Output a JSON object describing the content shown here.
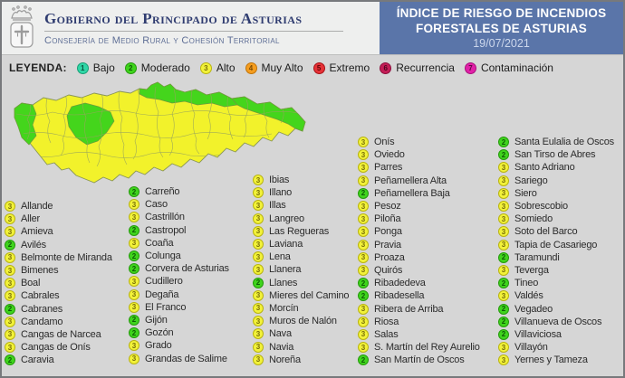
{
  "header": {
    "title": "Gobierno del Principado de Asturias",
    "subtitle": "Consejería de Medio Rural y Cohesión Territorial",
    "box_title_line1": "ÍNDICE DE RIESGO DE INCENDIOS",
    "box_title_line2": "FORESTALES DE ASTURIAS",
    "date": "19/07/2021",
    "accent_blue": "#5a75a9"
  },
  "legend": {
    "label": "LEYENDA:",
    "items": [
      {
        "level": "1",
        "label": "Bajo",
        "color": "#2fd6a6"
      },
      {
        "level": "2",
        "label": "Moderado",
        "color": "#3fd41c"
      },
      {
        "level": "3",
        "label": "Alto",
        "color": "#f2f239"
      },
      {
        "level": "4",
        "label": "Muy Alto",
        "color": "#f59d1f"
      },
      {
        "level": "5",
        "label": "Extremo",
        "color": "#e63237"
      },
      {
        "level": "6",
        "label": "Recurrencia",
        "color": "#c41e57"
      },
      {
        "level": "7",
        "label": "Contaminación",
        "color": "#e121a8"
      }
    ]
  },
  "map": {
    "region": "Asturias",
    "fill_alto": "#f2f22b",
    "fill_moderado": "#44d51c",
    "border_color": "#8a9655"
  },
  "columns": [
    {
      "items": [
        {
          "level": "3",
          "name": "Allande"
        },
        {
          "level": "3",
          "name": "Aller"
        },
        {
          "level": "3",
          "name": "Amieva"
        },
        {
          "level": "2",
          "name": "Avilés"
        },
        {
          "level": "3",
          "name": "Belmonte de Miranda"
        },
        {
          "level": "3",
          "name": "Bimenes"
        },
        {
          "level": "3",
          "name": "Boal"
        },
        {
          "level": "3",
          "name": "Cabrales"
        },
        {
          "level": "2",
          "name": "Cabranes"
        },
        {
          "level": "3",
          "name": "Candamo"
        },
        {
          "level": "3",
          "name": "Cangas de Narcea"
        },
        {
          "level": "3",
          "name": "Cangas de Onís"
        },
        {
          "level": "2",
          "name": "Caravia"
        }
      ]
    },
    {
      "items": [
        {
          "level": "2",
          "name": "Carreño"
        },
        {
          "level": "3",
          "name": "Caso"
        },
        {
          "level": "3",
          "name": "Castrillón"
        },
        {
          "level": "2",
          "name": "Castropol"
        },
        {
          "level": "3",
          "name": "Coaña"
        },
        {
          "level": "2",
          "name": "Colunga"
        },
        {
          "level": "2",
          "name": "Corvera de Asturias"
        },
        {
          "level": "3",
          "name": "Cudillero"
        },
        {
          "level": "3",
          "name": "Degaña"
        },
        {
          "level": "3",
          "name": "El Franco"
        },
        {
          "level": "2",
          "name": "Gijón"
        },
        {
          "level": "2",
          "name": "Gozón"
        },
        {
          "level": "3",
          "name": "Grado"
        },
        {
          "level": "3",
          "name": "Grandas de Salime"
        }
      ]
    },
    {
      "items": [
        {
          "level": "3",
          "name": "Ibias"
        },
        {
          "level": "3",
          "name": "Illano"
        },
        {
          "level": "3",
          "name": "Illas"
        },
        {
          "level": "3",
          "name": "Langreo"
        },
        {
          "level": "3",
          "name": "Las Regueras"
        },
        {
          "level": "3",
          "name": "Laviana"
        },
        {
          "level": "3",
          "name": "Lena"
        },
        {
          "level": "3",
          "name": "Llanera"
        },
        {
          "level": "2",
          "name": "Llanes"
        },
        {
          "level": "3",
          "name": "Mieres del Camino"
        },
        {
          "level": "3",
          "name": "Morcín"
        },
        {
          "level": "3",
          "name": "Muros de Nalón"
        },
        {
          "level": "3",
          "name": "Nava"
        },
        {
          "level": "3",
          "name": "Navia"
        },
        {
          "level": "3",
          "name": "Noreña"
        }
      ]
    },
    {
      "items": [
        {
          "level": "3",
          "name": "Onís"
        },
        {
          "level": "3",
          "name": "Oviedo"
        },
        {
          "level": "3",
          "name": "Parres"
        },
        {
          "level": "3",
          "name": "Peñamellera Alta"
        },
        {
          "level": "2",
          "name": "Peñamellera Baja"
        },
        {
          "level": "3",
          "name": "Pesoz"
        },
        {
          "level": "3",
          "name": "Piloña"
        },
        {
          "level": "3",
          "name": "Ponga"
        },
        {
          "level": "3",
          "name": "Pravia"
        },
        {
          "level": "3",
          "name": "Proaza"
        },
        {
          "level": "3",
          "name": "Quirós"
        },
        {
          "level": "2",
          "name": "Ribadedeva"
        },
        {
          "level": "2",
          "name": "Ribadesella"
        },
        {
          "level": "3",
          "name": "Ribera de Arriba"
        },
        {
          "level": "3",
          "name": "Riosa"
        },
        {
          "level": "3",
          "name": "Salas"
        },
        {
          "level": "3",
          "name": "S. Martín del Rey Aurelio"
        },
        {
          "level": "2",
          "name": "San Martín de Oscos"
        }
      ]
    },
    {
      "items": [
        {
          "level": "2",
          "name": "Santa Eulalia de Oscos"
        },
        {
          "level": "2",
          "name": "San Tirso de Abres"
        },
        {
          "level": "3",
          "name": "Santo Adriano"
        },
        {
          "level": "3",
          "name": "Sariego"
        },
        {
          "level": "3",
          "name": "Siero"
        },
        {
          "level": "3",
          "name": "Sobrescobio"
        },
        {
          "level": "3",
          "name": "Somiedo"
        },
        {
          "level": "3",
          "name": "Soto del Barco"
        },
        {
          "level": "3",
          "name": "Tapia de Casariego"
        },
        {
          "level": "2",
          "name": "Taramundi"
        },
        {
          "level": "3",
          "name": "Teverga"
        },
        {
          "level": "2",
          "name": "Tineo"
        },
        {
          "level": "3",
          "name": "Valdés"
        },
        {
          "level": "2",
          "name": "Vegadeo"
        },
        {
          "level": "2",
          "name": "Villanueva de Oscos"
        },
        {
          "level": "2",
          "name": "Villaviciosa"
        },
        {
          "level": "3",
          "name": "Villayón"
        },
        {
          "level": "3",
          "name": "Yernes y Tameza"
        }
      ]
    }
  ]
}
